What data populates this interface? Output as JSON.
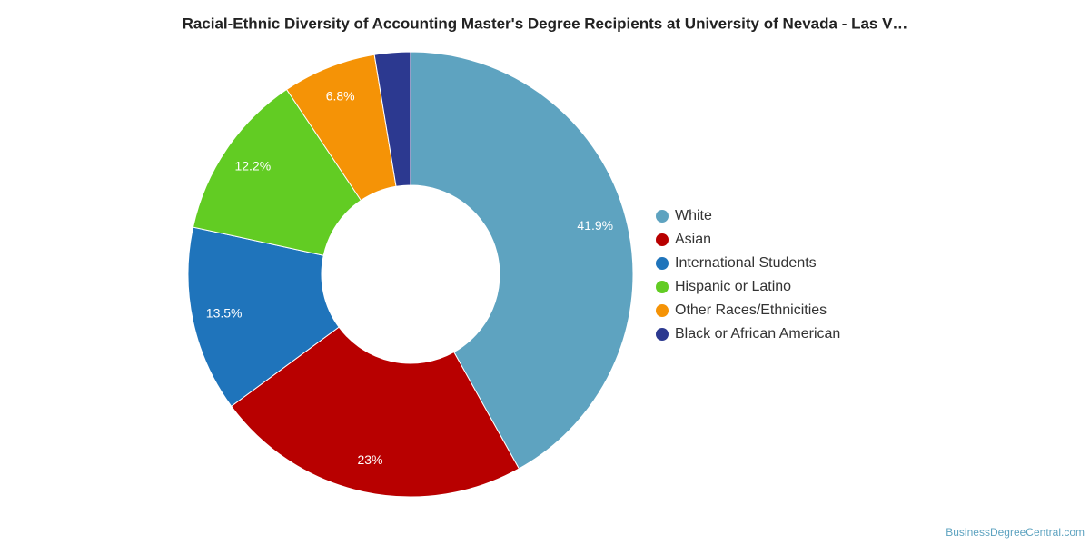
{
  "chart_data": {
    "type": "donut",
    "title": "Racial-Ethnic Diversity of Accounting Master's Degree Recipients at University of Nevada - Las V…",
    "categories": [
      "White",
      "Asian",
      "International Students",
      "Hispanic or Latino",
      "Other Races/Ethnicities",
      "Black or African American"
    ],
    "values": [
      41.9,
      23,
      13.5,
      12.2,
      6.8,
      2.6
    ],
    "value_labels": [
      "41.9%",
      "23%",
      "13.5%",
      "12.2%",
      "6.8%",
      null
    ],
    "colors": [
      "#5ea3c0",
      "#b80000",
      "#1f74bb",
      "#62cc23",
      "#f59306",
      "#2c3990"
    ],
    "legend": "right",
    "source": "BusinessDegreeCentral.com"
  }
}
